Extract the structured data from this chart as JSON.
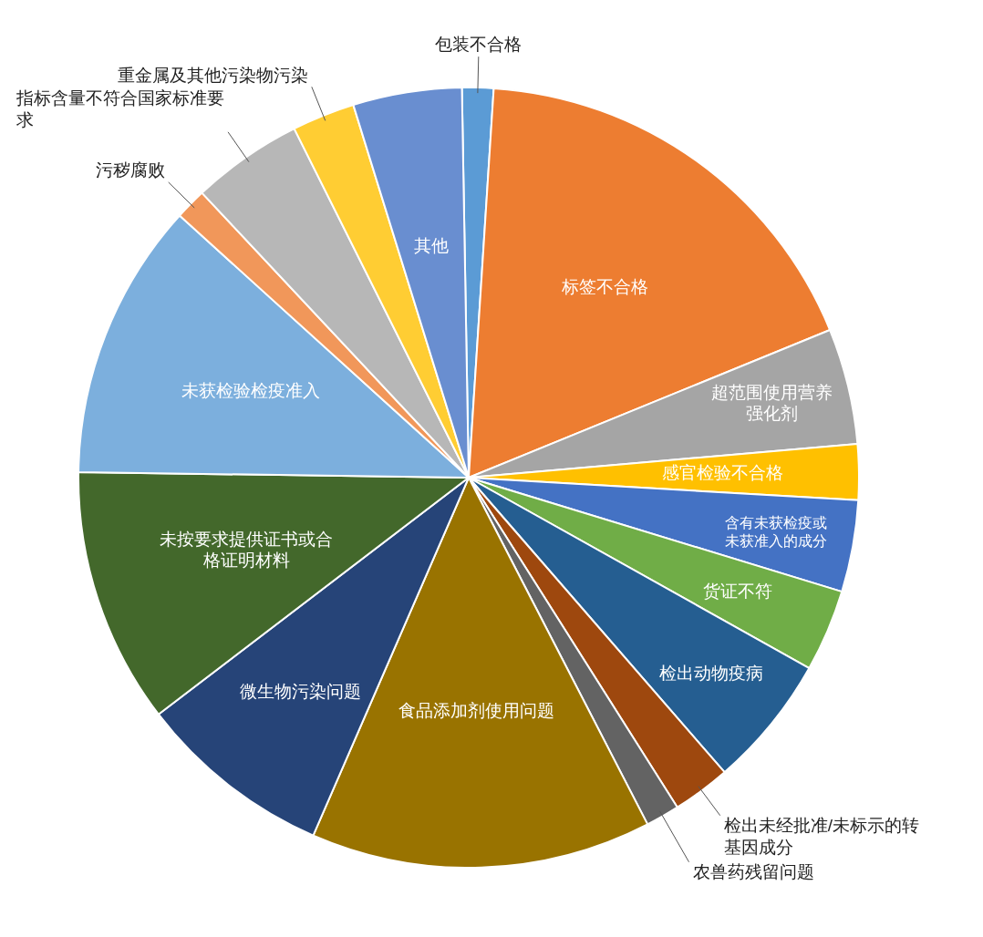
{
  "chart_data": {
    "type": "pie",
    "categories": [
      "包装不合格",
      "标签不合格",
      "超范围使用营养强化剂",
      "感官检验不合格",
      "含有未获检疫或未获准入的成分",
      "货证不符",
      "检出动物疫病",
      "检出未经批准/未标示的转基因成分",
      "农兽药残留问题",
      "食品添加剂使用问题",
      "微生物污染问题",
      "未按要求提供证书或合格证明材料",
      "未获检验检疫准入",
      "污秽腐败",
      "指标含量不符合国家标准要求",
      "重金属及其他污染物污染",
      "其他"
    ],
    "values": [
      1.3,
      17.8,
      4.8,
      2.3,
      3.8,
      3.4,
      5.5,
      2.4,
      1.4,
      14.1,
      8.1,
      10.6,
      11.5,
      1.3,
      4.6,
      2.6,
      4.5
    ],
    "colors": [
      "#5b9bd5",
      "#ed7d31",
      "#a5a5a5",
      "#ffc000",
      "#4472c4",
      "#70ad47",
      "#255e91",
      "#9e480e",
      "#636363",
      "#997300",
      "#264478",
      "#43682b",
      "#7cafdd",
      "#f1975a",
      "#b7b7b7",
      "#ffcd33",
      "#698ed0"
    ]
  }
}
